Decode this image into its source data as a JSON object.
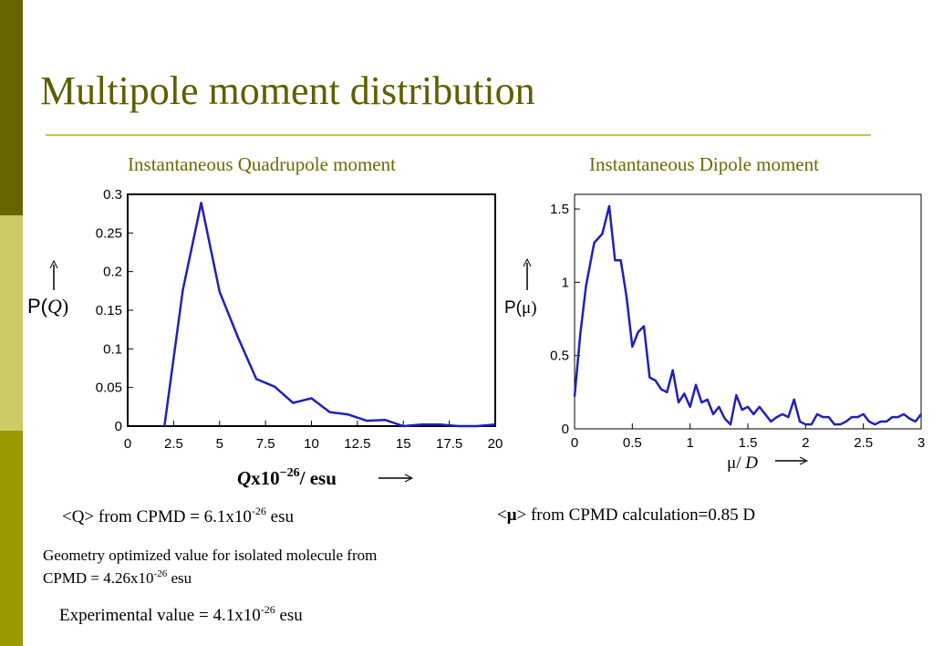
{
  "title": "Multipole moment distribution",
  "chart_data": [
    {
      "type": "line",
      "title": "Instantaneous Quadrupole moment",
      "ylabel": {
        "text": "P(",
        "symbol": "Q",
        "tail": ")"
      },
      "xlabel": {
        "symbol": "Q",
        "text": "x10",
        "sup": "−26",
        "tail": "/ esu"
      },
      "xlim": [
        0,
        20
      ],
      "xticks": [
        0,
        2.5,
        5,
        7.5,
        10,
        12.5,
        15,
        17.5,
        20
      ],
      "ylim": [
        0,
        0.3
      ],
      "yticks": [
        0,
        0.05,
        0.1,
        0.15,
        0.2,
        0.25,
        0.3
      ],
      "series": [
        {
          "color": "#1f1fc0",
          "x": [
            2,
            3,
            4,
            5,
            6,
            7,
            8,
            9,
            10,
            11,
            12,
            13,
            14,
            15,
            16,
            17,
            18,
            19,
            20
          ],
          "values": [
            0,
            0.176,
            0.289,
            0.174,
            0.115,
            0.061,
            0.051,
            0.03,
            0.036,
            0.018,
            0.015,
            0.007,
            0.008,
            0,
            0.002,
            0.002,
            0,
            0,
            0.002
          ]
        }
      ]
    },
    {
      "type": "line",
      "title": "Instantaneous Dipole moment",
      "ylabel": {
        "text": "P(",
        "symbol": "μ",
        "tail": ")"
      },
      "xlabel": {
        "symbol": "μ",
        "text": "/ ",
        "sup": "",
        "tail": "D"
      },
      "xlim": [
        0,
        3
      ],
      "xticks": [
        0,
        0.5,
        1,
        1.5,
        2,
        2.5,
        3
      ],
      "ylim": [
        0,
        1.6
      ],
      "yticks": [
        0,
        0.5,
        1,
        1.5
      ],
      "series": [
        {
          "color": "#1f1fc0",
          "x": [
            0,
            0.05,
            0.1,
            0.17,
            0.24,
            0.3,
            0.35,
            0.4,
            0.45,
            0.5,
            0.55,
            0.6,
            0.65,
            0.7,
            0.75,
            0.8,
            0.85,
            0.9,
            0.95,
            1.0,
            1.05,
            1.1,
            1.15,
            1.2,
            1.25,
            1.3,
            1.35,
            1.4,
            1.45,
            1.5,
            1.55,
            1.6,
            1.65,
            1.7,
            1.75,
            1.8,
            1.85,
            1.9,
            1.95,
            2.0,
            2.05,
            2.1,
            2.15,
            2.2,
            2.25,
            2.3,
            2.35,
            2.4,
            2.45,
            2.5,
            2.55,
            2.6,
            2.65,
            2.7,
            2.75,
            2.8,
            2.85,
            2.9,
            2.95,
            3.0
          ],
          "values": [
            0.22,
            0.65,
            0.98,
            1.27,
            1.33,
            1.52,
            1.15,
            1.15,
            0.9,
            0.56,
            0.66,
            0.7,
            0.35,
            0.33,
            0.27,
            0.25,
            0.4,
            0.18,
            0.24,
            0.15,
            0.3,
            0.18,
            0.2,
            0.1,
            0.15,
            0.07,
            0.03,
            0.23,
            0.13,
            0.15,
            0.1,
            0.15,
            0.1,
            0.05,
            0.08,
            0.1,
            0.08,
            0.2,
            0.05,
            0.03,
            0.03,
            0.1,
            0.08,
            0.08,
            0.03,
            0.03,
            0.05,
            0.08,
            0.08,
            0.1,
            0.05,
            0.03,
            0.05,
            0.05,
            0.08,
            0.08,
            0.1,
            0.07,
            0.05,
            0.1
          ]
        }
      ]
    }
  ],
  "notes": [
    {
      "text": "<Q> from CPMD = 6.1x10",
      "sup": "-26",
      "tail": " esu"
    },
    {
      "text": "<",
      "symbol": "μ",
      "tail": "> from CPMD calculation=0.85 D"
    },
    {
      "text": "Geometry optimized value for isolated molecule from",
      "line2": "CPMD = 4.26x10",
      "sup": "-26",
      "tail": " esu"
    },
    {
      "text": "Experimental value = 4.1x10",
      "sup": "-26",
      "tail": " esu"
    }
  ]
}
